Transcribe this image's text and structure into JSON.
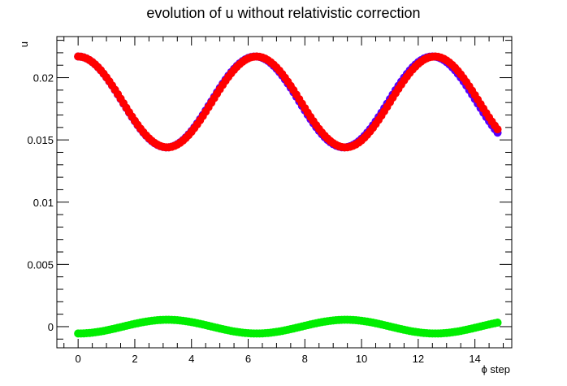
{
  "chart_data": {
    "type": "scatter",
    "title": "evolution of u without relativistic correction",
    "xlabel": "ϕ step",
    "ylabel": "u",
    "xlim": [
      -0.75,
      15.3
    ],
    "ylim": [
      -0.0017,
      0.0233
    ],
    "x_ticks": [
      0,
      2,
      4,
      6,
      8,
      10,
      12,
      14
    ],
    "y_ticks": [
      0,
      0.005,
      0.01,
      0.015,
      0.02
    ],
    "y_tick_labels": [
      "0",
      "0.005",
      "0.01",
      "0.015",
      "0.02"
    ],
    "grid": false,
    "x_step": 0.1,
    "x_range": [
      0,
      14.8
    ],
    "series": [
      {
        "color": "#5500ff",
        "model": "sinusoid",
        "mean": 0.01805,
        "amplitude": 0.00365,
        "period": 6.25,
        "phase": 0,
        "x": [
          0,
          1.56,
          3.1,
          4.66,
          6.2,
          7.76,
          9.3,
          10.86,
          12.4,
          14.8
        ],
        "y": [
          0.0217,
          0.0181,
          0.0144,
          0.0181,
          0.0217,
          0.0181,
          0.0144,
          0.0181,
          0.0217,
          0.0152
        ]
      },
      {
        "color": "#ff0000",
        "model": "sinusoid",
        "mean": 0.01805,
        "amplitude": 0.00365,
        "period": 6.29,
        "phase": 0,
        "x": [
          0,
          1.57,
          3.15,
          4.72,
          6.3,
          7.86,
          9.43,
          11.0,
          12.58,
          14.8
        ],
        "y": [
          0.0217,
          0.0181,
          0.0144,
          0.0181,
          0.0217,
          0.0181,
          0.0144,
          0.0181,
          0.0217,
          0.0157
        ]
      },
      {
        "color": "#00ee00",
        "model": "sinusoid",
        "mean": 0,
        "amplitude": 0.00055,
        "period": 6.3,
        "phase": 3.1416,
        "x": [
          0,
          1.6,
          3.2,
          4.7,
          6.3,
          7.9,
          9.5,
          11.0,
          12.6,
          14.8
        ],
        "y": [
          0,
          -0.00055,
          0,
          0.00055,
          0,
          -0.00055,
          0,
          0.00055,
          0,
          -0.0003
        ]
      }
    ]
  }
}
